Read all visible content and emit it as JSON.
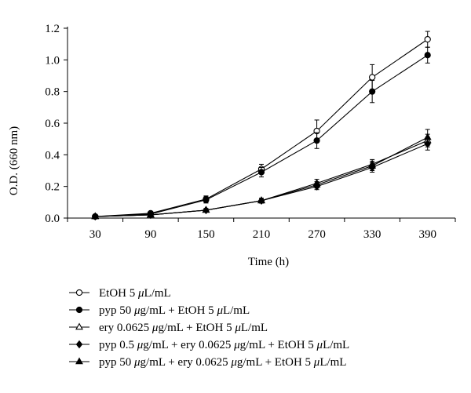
{
  "chart_data": {
    "type": "line",
    "xlabel": "Time (h)",
    "ylabel": "O.D. (660 nm)",
    "x": [
      30,
      90,
      150,
      210,
      270,
      330,
      390
    ],
    "x_ticks": [
      "30",
      "90",
      "150",
      "210",
      "270",
      "330",
      "390"
    ],
    "y_ticks": [
      "0.0",
      "0.2",
      "0.4",
      "0.6",
      "0.8",
      "1.0",
      "1.2"
    ],
    "ylim": [
      0,
      1.2
    ],
    "grid": false,
    "legend_position": "bottom",
    "series": [
      {
        "name": "EtOH 5 μL/mL",
        "name_parts": [
          "EtOH 5 ",
          "μ",
          "L/mL"
        ],
        "marker": "circle-open",
        "values": [
          0.01,
          0.03,
          0.12,
          0.31,
          0.55,
          0.89,
          1.13
        ],
        "errors": [
          0.005,
          0.01,
          0.02,
          0.03,
          0.07,
          0.08,
          0.05
        ]
      },
      {
        "name": "pyp 50 μg/mL + EtOH 5 μL/mL",
        "name_parts": [
          "pyp 50 ",
          "μ",
          "g/mL + EtOH 5 ",
          "μ",
          "L/mL"
        ],
        "marker": "circle-filled",
        "values": [
          0.01,
          0.025,
          0.115,
          0.29,
          0.49,
          0.8,
          1.03
        ],
        "errors": [
          0.005,
          0.01,
          0.02,
          0.03,
          0.05,
          0.07,
          0.05
        ]
      },
      {
        "name": "ery 0.0625 μg/mL + EtOH 5 μL/mL",
        "name_parts": [
          "ery 0.0625 ",
          "μ",
          "g/mL + EtOH 5 ",
          "μ",
          "L/mL"
        ],
        "marker": "triangle-open",
        "values": [
          0.01,
          0.02,
          0.05,
          0.11,
          0.22,
          0.34,
          0.49
        ],
        "errors": [
          0.003,
          0.005,
          0.01,
          0.015,
          0.025,
          0.03,
          0.04
        ]
      },
      {
        "name": "pyp 0.5 μg/mL + ery 0.0625 μg/mL + EtOH 5 μL/mL",
        "name_parts": [
          "pyp 0.5 ",
          "μ",
          "g/mL + ery 0.0625 ",
          "μ",
          "g/mL + EtOH 5 ",
          "μ",
          "L/mL"
        ],
        "marker": "diamond-filled",
        "values": [
          0.01,
          0.02,
          0.05,
          0.11,
          0.2,
          0.32,
          0.47
        ],
        "errors": [
          0.003,
          0.005,
          0.01,
          0.015,
          0.02,
          0.03,
          0.04
        ]
      },
      {
        "name": "pyp 50 μg/mL + ery 0.0625 μg/mL + EtOH 5 μL/mL",
        "name_parts": [
          "pyp 50 ",
          "μ",
          "g/mL + ery 0.0625 ",
          "μ",
          "g/mL + EtOH 5 ",
          "μ",
          "L/mL"
        ],
        "marker": "triangle-filled",
        "values": [
          0.01,
          0.02,
          0.05,
          0.11,
          0.21,
          0.33,
          0.51
        ],
        "errors": [
          0.003,
          0.005,
          0.01,
          0.015,
          0.02,
          0.03,
          0.05
        ]
      }
    ]
  }
}
